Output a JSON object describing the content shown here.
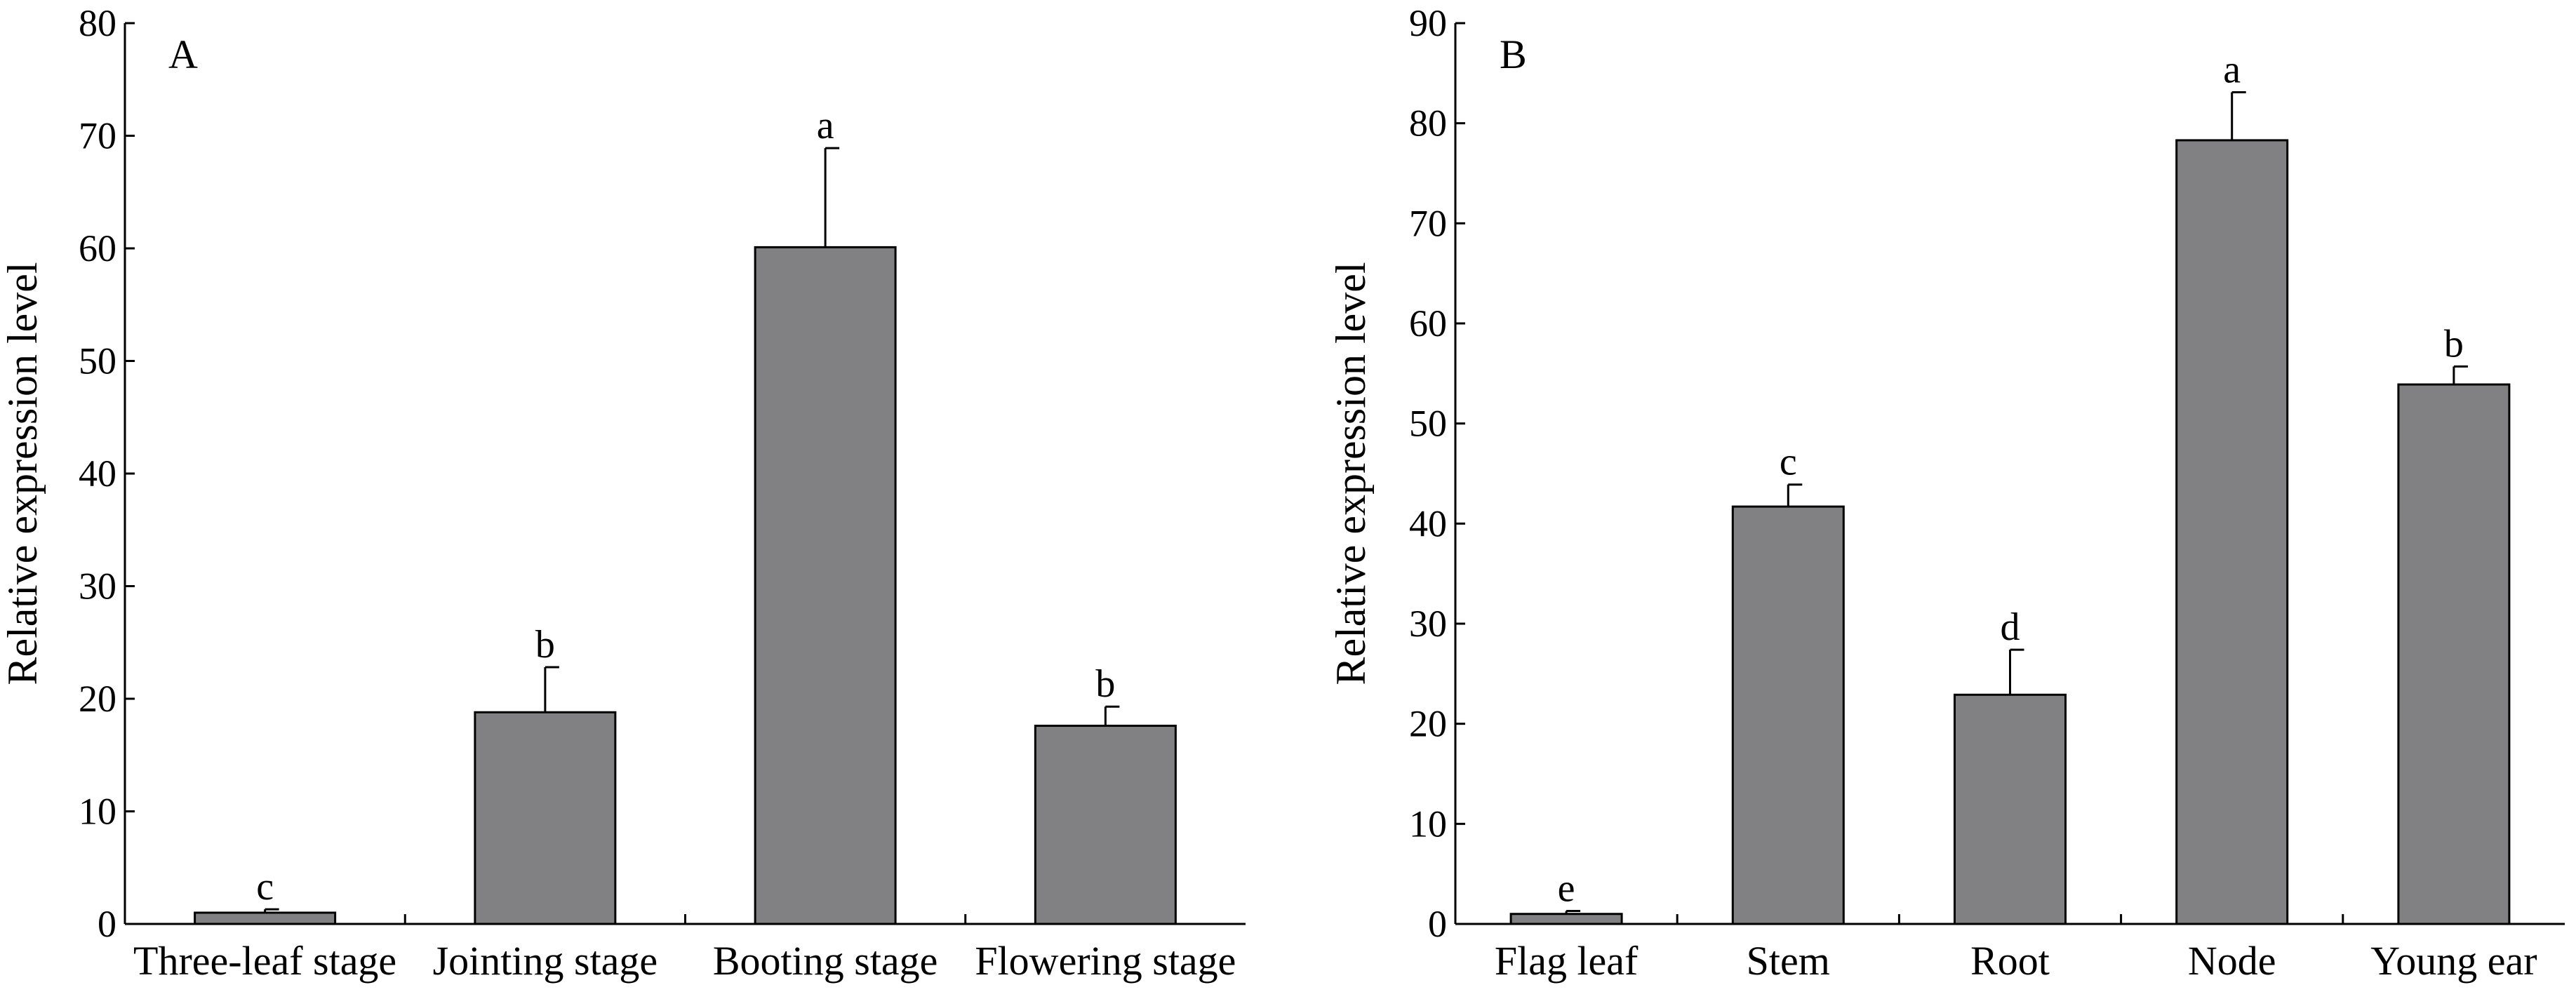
{
  "chart_data": [
    {
      "type": "bar",
      "panel_label": "A",
      "ylabel": "Relative expression level",
      "xlabel": "",
      "ylim": [
        0,
        80
      ],
      "yticks": [
        0,
        10,
        20,
        30,
        40,
        50,
        60,
        70,
        80
      ],
      "grid": false,
      "categories": [
        "Three-leaf stage",
        "Jointing stage",
        "Booting stage",
        "Flowering stage"
      ],
      "values": [
        1.0,
        18.8,
        60.1,
        17.6
      ],
      "errors": [
        0.3,
        4.0,
        8.8,
        1.7
      ],
      "significance": [
        "c",
        "b",
        "a",
        "b"
      ],
      "bar_color": "#818083"
    },
    {
      "type": "bar",
      "panel_label": "B",
      "ylabel": "Relative expression level",
      "xlabel": "",
      "ylim": [
        0,
        90
      ],
      "yticks": [
        0,
        10,
        20,
        30,
        40,
        50,
        60,
        70,
        80,
        90
      ],
      "grid": false,
      "categories": [
        "Flag leaf",
        "Stem",
        "Root",
        "Node",
        "Young ear"
      ],
      "values": [
        1.0,
        41.7,
        22.9,
        78.3,
        53.9
      ],
      "errors": [
        0.3,
        2.2,
        4.5,
        4.8,
        1.8
      ],
      "significance": [
        "e",
        "c",
        "d",
        "a",
        "b"
      ],
      "bar_color": "#818083"
    }
  ]
}
